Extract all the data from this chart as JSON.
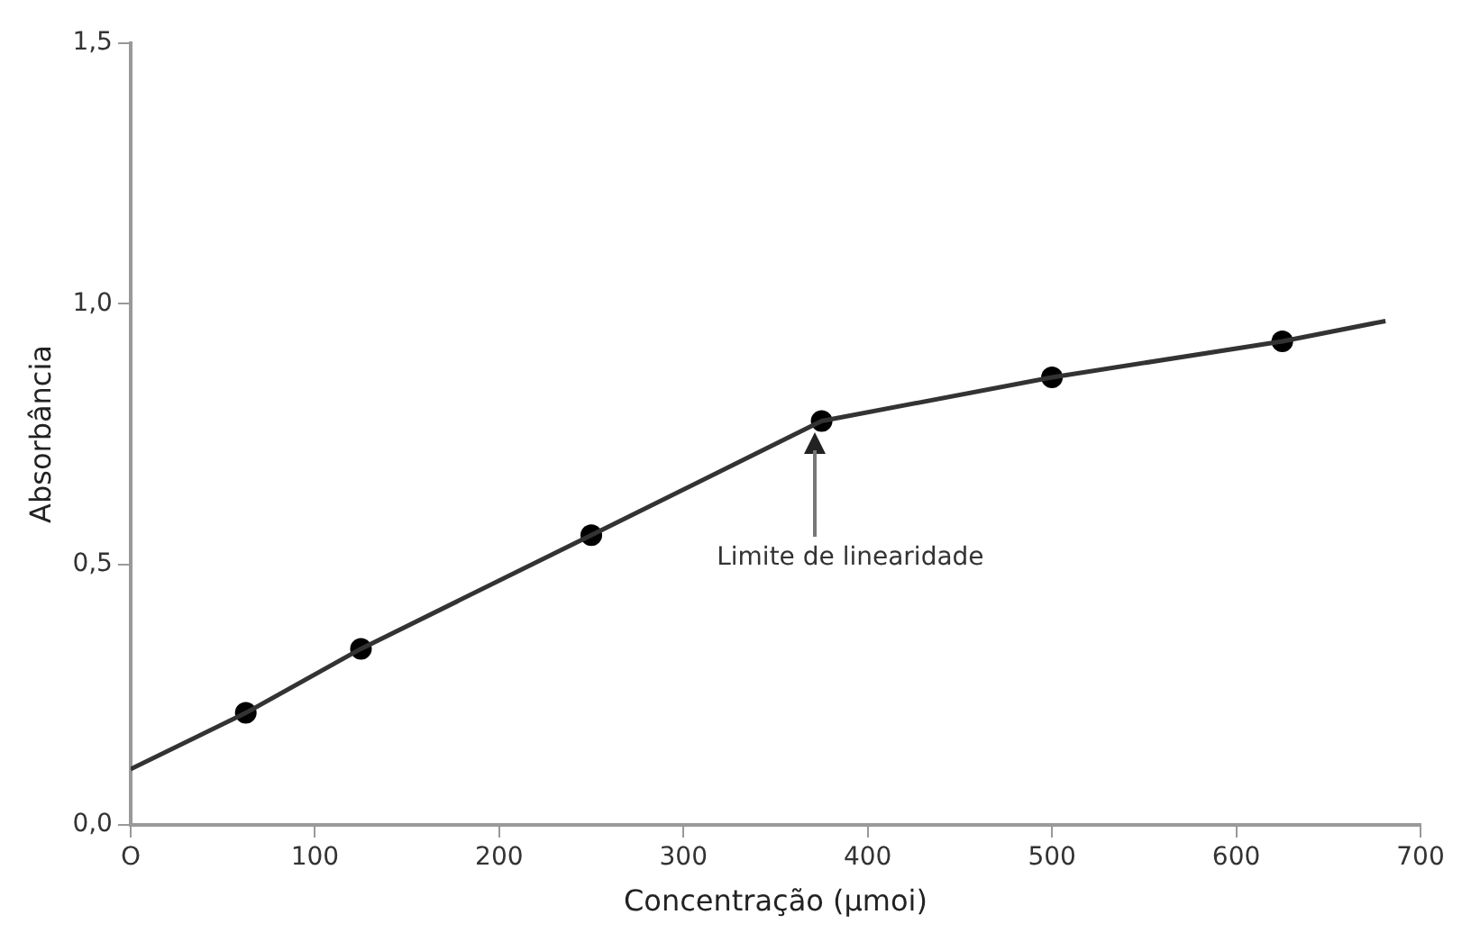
{
  "chart_data": {
    "type": "line",
    "xlabel": "Concentração (µmoi)",
    "ylabel": "Absorbância",
    "series": [
      {
        "color": "#333333",
        "marker": "none",
        "x": [
          0,
          62.5,
          125,
          250,
          375,
          500,
          625,
          681
        ],
        "values": [
          0.107,
          0.215,
          0.338,
          0.556,
          0.775,
          0.859,
          0.928,
          0.967
        ]
      },
      {
        "type": "scatter",
        "color": "#000000",
        "marker": "circle",
        "x": [
          62.5,
          125,
          250,
          375,
          500,
          625
        ],
        "values": [
          0.215,
          0.338,
          0.556,
          0.775,
          0.859,
          0.928
        ]
      }
    ],
    "xlim": [
      0,
      700
    ],
    "xticks": [
      {
        "value": 0,
        "label": "O"
      },
      100,
      200,
      300,
      400,
      500,
      600,
      700
    ],
    "ylim": [
      0,
      1.5
    ],
    "yticks": [
      {
        "value": 0,
        "label": "0,0"
      },
      {
        "value": 0.5,
        "label": "0,5"
      },
      {
        "value": 1,
        "label": "1,0"
      },
      {
        "value": 1.5,
        "label": "1,5"
      }
    ],
    "annotations": [
      "Limite de linearidade"
    ],
    "grid": false,
    "legend": false
  }
}
